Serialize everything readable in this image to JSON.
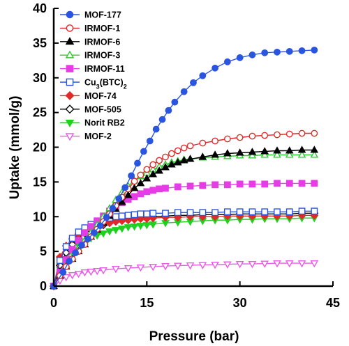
{
  "chart_data": {
    "type": "line",
    "xlabel": "Pressure (bar)",
    "ylabel": "Uptake (mmol/g)",
    "xlim": [
      0,
      45
    ],
    "ylim": [
      0,
      40
    ],
    "x_ticks": [
      "0",
      "15",
      "30",
      "45"
    ],
    "y_ticks": [
      "0",
      "5",
      "10",
      "15",
      "20",
      "25",
      "30",
      "35",
      "40"
    ],
    "grid": false,
    "legend_position": "top-left",
    "series": [
      {
        "name": "MOF-177",
        "name_main": "MOF-177",
        "name_sub": "",
        "name_after": "",
        "color": "#2a55e0",
        "marker": "circle",
        "filled": true,
        "x": [
          0,
          1.5,
          2.5,
          3.5,
          4.5,
          5.5,
          6.5,
          7.5,
          8.5,
          9.5,
          10.5,
          11.5,
          12.5,
          13.5,
          14.5,
          15.5,
          16.5,
          17.5,
          18.5,
          19.5,
          21,
          22.5,
          24,
          26,
          28,
          30,
          32,
          34,
          36,
          38,
          40,
          42
        ],
        "y": [
          0,
          2.0,
          3.6,
          4.8,
          5.9,
          6.8,
          7.7,
          8.7,
          9.9,
          11.2,
          12.6,
          14.2,
          15.9,
          17.7,
          19.4,
          20.9,
          22.6,
          24.0,
          25.3,
          26.5,
          28.0,
          29.3,
          30.3,
          31.4,
          32.3,
          32.9,
          33.3,
          33.6,
          33.7,
          33.8,
          33.9,
          34.0
        ]
      },
      {
        "name": "IRMOF-1",
        "name_main": "IRMOF-1",
        "name_sub": "",
        "name_after": "",
        "color": "#e02a2a",
        "marker": "circle",
        "filled": false,
        "x": [
          0,
          1,
          2,
          3,
          4,
          5,
          6,
          7,
          8,
          9,
          10,
          11,
          12,
          13,
          14,
          15,
          16,
          17,
          18,
          19,
          20,
          21,
          22,
          24,
          26,
          28,
          30,
          32,
          34,
          36,
          38,
          40,
          42
        ],
        "y": [
          0,
          1.5,
          2.8,
          3.9,
          5.0,
          6.0,
          7.1,
          8.2,
          9.3,
          10.4,
          11.6,
          12.8,
          14.0,
          15.1,
          16.0,
          16.8,
          17.5,
          18.1,
          18.6,
          19.1,
          19.5,
          19.9,
          20.2,
          20.6,
          20.9,
          21.2,
          21.4,
          21.6,
          21.7,
          21.8,
          21.9,
          22.0,
          22.0
        ]
      },
      {
        "name": "IRMOF-6",
        "name_main": "IRMOF-6",
        "name_sub": "",
        "name_after": "",
        "color": "#000000",
        "marker": "triangle",
        "filled": true,
        "x": [
          0,
          1,
          2,
          3,
          4,
          5,
          6,
          7,
          8,
          9,
          10,
          11,
          12,
          13,
          14,
          15,
          16,
          17,
          18,
          19,
          20,
          21,
          22,
          24,
          26,
          28,
          30,
          32,
          34,
          36,
          38,
          40,
          42
        ],
        "y": [
          0,
          1.5,
          2.8,
          3.9,
          5.0,
          6.0,
          7.1,
          8.1,
          9.1,
          10.1,
          11.1,
          12.1,
          13.1,
          14.1,
          14.8,
          15.5,
          16.1,
          16.6,
          17.1,
          17.5,
          17.8,
          18.1,
          18.3,
          18.6,
          18.9,
          19.1,
          19.2,
          19.3,
          19.4,
          19.5,
          19.5,
          19.6,
          19.6
        ]
      },
      {
        "name": "IRMOF-3",
        "name_main": "IRMOF-3",
        "name_sub": "",
        "name_after": "",
        "color": "#2ec92e",
        "marker": "triangle",
        "filled": false,
        "x": [
          0,
          1,
          2,
          3,
          4,
          5,
          6,
          7,
          8,
          9,
          10,
          11,
          12,
          13,
          14,
          15,
          16,
          17,
          18,
          19,
          20,
          21,
          22,
          24,
          26,
          28,
          30,
          32,
          34,
          36,
          38,
          40,
          42
        ],
        "y": [
          0,
          1.6,
          3.0,
          4.2,
          5.4,
          6.6,
          7.7,
          8.8,
          10.0,
          11.2,
          12.4,
          13.5,
          14.4,
          15.2,
          15.8,
          16.3,
          16.8,
          17.2,
          17.5,
          17.8,
          18.0,
          18.2,
          18.3,
          18.5,
          18.6,
          18.7,
          18.8,
          18.8,
          18.9,
          18.9,
          18.9,
          18.9,
          18.9
        ]
      },
      {
        "name": "IRMOF-11",
        "name_main": "IRMOF-11",
        "name_sub": "",
        "name_after": "",
        "color": "#e63ce6",
        "marker": "square",
        "filled": true,
        "x": [
          0,
          1,
          2,
          3,
          4,
          5,
          6,
          7,
          8,
          9,
          10,
          11,
          12,
          13,
          14,
          15,
          16,
          17,
          18,
          20,
          22,
          24,
          26,
          28,
          30,
          32,
          34,
          36,
          38,
          40,
          42
        ],
        "y": [
          0,
          2.0,
          3.8,
          5.3,
          6.6,
          7.7,
          8.6,
          9.4,
          10.1,
          10.8,
          11.4,
          12.0,
          12.5,
          12.9,
          13.3,
          13.6,
          13.8,
          14.0,
          14.1,
          14.3,
          14.4,
          14.5,
          14.6,
          14.6,
          14.7,
          14.7,
          14.7,
          14.8,
          14.8,
          14.8,
          14.8
        ]
      },
      {
        "name": "Cu3(BTC)2",
        "name_main": "Cu",
        "name_sub": "3",
        "name_after": "(BTC)",
        "name_sub2": "2",
        "color": "#2a55e0",
        "marker": "square",
        "filled": false,
        "x": [
          0,
          1,
          2,
          3,
          4,
          5,
          6,
          7,
          8,
          9,
          10,
          11,
          12,
          13,
          14,
          15,
          16,
          18,
          20,
          22,
          24,
          26,
          28,
          30,
          32,
          34,
          36,
          38,
          40,
          42
        ],
        "y": [
          0,
          3.7,
          5.7,
          6.9,
          7.8,
          8.4,
          8.9,
          9.3,
          9.6,
          9.8,
          10.0,
          10.1,
          10.2,
          10.3,
          10.4,
          10.4,
          10.5,
          10.5,
          10.6,
          10.6,
          10.6,
          10.6,
          10.7,
          10.7,
          10.7,
          10.7,
          10.7,
          10.7,
          10.8,
          10.8
        ]
      },
      {
        "name": "MOF-74",
        "name_main": "MOF-74",
        "name_sub": "",
        "name_after": "",
        "color": "#e02a2a",
        "marker": "diamond",
        "filled": true,
        "x": [
          0,
          1,
          2,
          3,
          4,
          5,
          6,
          7,
          8,
          9,
          10,
          11,
          12,
          13,
          14,
          15,
          16,
          18,
          20,
          22,
          24,
          26,
          28,
          30,
          32,
          34,
          36,
          38,
          40,
          42
        ],
        "y": [
          0,
          4.2,
          5.8,
          6.8,
          7.5,
          8.0,
          8.4,
          8.7,
          8.9,
          9.1,
          9.3,
          9.4,
          9.5,
          9.6,
          9.7,
          9.7,
          9.8,
          9.9,
          9.9,
          10.0,
          10.0,
          10.0,
          10.1,
          10.1,
          10.1,
          10.1,
          10.1,
          10.1,
          10.2,
          10.2
        ]
      },
      {
        "name": "MOF-505",
        "name_main": "MOF-505",
        "name_sub": "",
        "name_after": "",
        "color": "#000000",
        "marker": "diamond",
        "filled": false,
        "x": [
          0,
          1,
          2,
          3,
          4,
          5,
          6,
          7,
          8,
          9,
          10,
          11,
          12,
          13,
          14,
          15,
          16,
          18,
          20,
          22,
          24,
          26,
          28,
          30,
          32,
          34,
          36,
          38,
          40,
          42
        ],
        "y": [
          0,
          3.0,
          4.8,
          6.0,
          6.9,
          7.6,
          8.1,
          8.5,
          8.8,
          9.1,
          9.3,
          9.5,
          9.6,
          9.7,
          9.8,
          9.9,
          10.0,
          10.1,
          10.2,
          10.2,
          10.3,
          10.3,
          10.3,
          10.4,
          10.4,
          10.4,
          10.4,
          10.4,
          10.5,
          10.5
        ]
      },
      {
        "name": "Norit RB2",
        "name_main": "Norit RB2",
        "name_sub": "",
        "name_after": "",
        "color": "#1fd11f",
        "marker": "triangle-down",
        "filled": true,
        "x": [
          0,
          1,
          2,
          3,
          4,
          5,
          6,
          7,
          8,
          9,
          10,
          11,
          12,
          13,
          14,
          15,
          16,
          18,
          20,
          22,
          24,
          26,
          28,
          30,
          32,
          34,
          36,
          38,
          40,
          42
        ],
        "y": [
          0,
          2.4,
          3.9,
          5.0,
          5.8,
          6.4,
          6.9,
          7.3,
          7.6,
          7.9,
          8.1,
          8.3,
          8.5,
          8.6,
          8.7,
          8.8,
          8.9,
          9.1,
          9.2,
          9.3,
          9.4,
          9.5,
          9.5,
          9.6,
          9.6,
          9.7,
          9.7,
          9.7,
          9.8,
          9.8
        ]
      },
      {
        "name": "MOF-2",
        "name_main": "MOF-2",
        "name_sub": "",
        "name_after": "",
        "color": "#e85ae8",
        "marker": "triangle-down",
        "filled": false,
        "x": [
          0,
          1,
          2,
          3,
          4,
          5,
          6,
          7,
          8,
          10,
          12,
          14,
          16,
          18,
          20,
          22,
          24,
          26,
          28,
          30,
          32,
          34,
          36,
          38,
          40,
          42
        ],
        "y": [
          0,
          0.8,
          1.3,
          1.6,
          1.8,
          2.0,
          2.1,
          2.2,
          2.3,
          2.5,
          2.6,
          2.7,
          2.8,
          2.9,
          2.95,
          3.0,
          3.05,
          3.1,
          3.15,
          3.2,
          3.2,
          3.25,
          3.3,
          3.3,
          3.3,
          3.3
        ]
      }
    ]
  }
}
